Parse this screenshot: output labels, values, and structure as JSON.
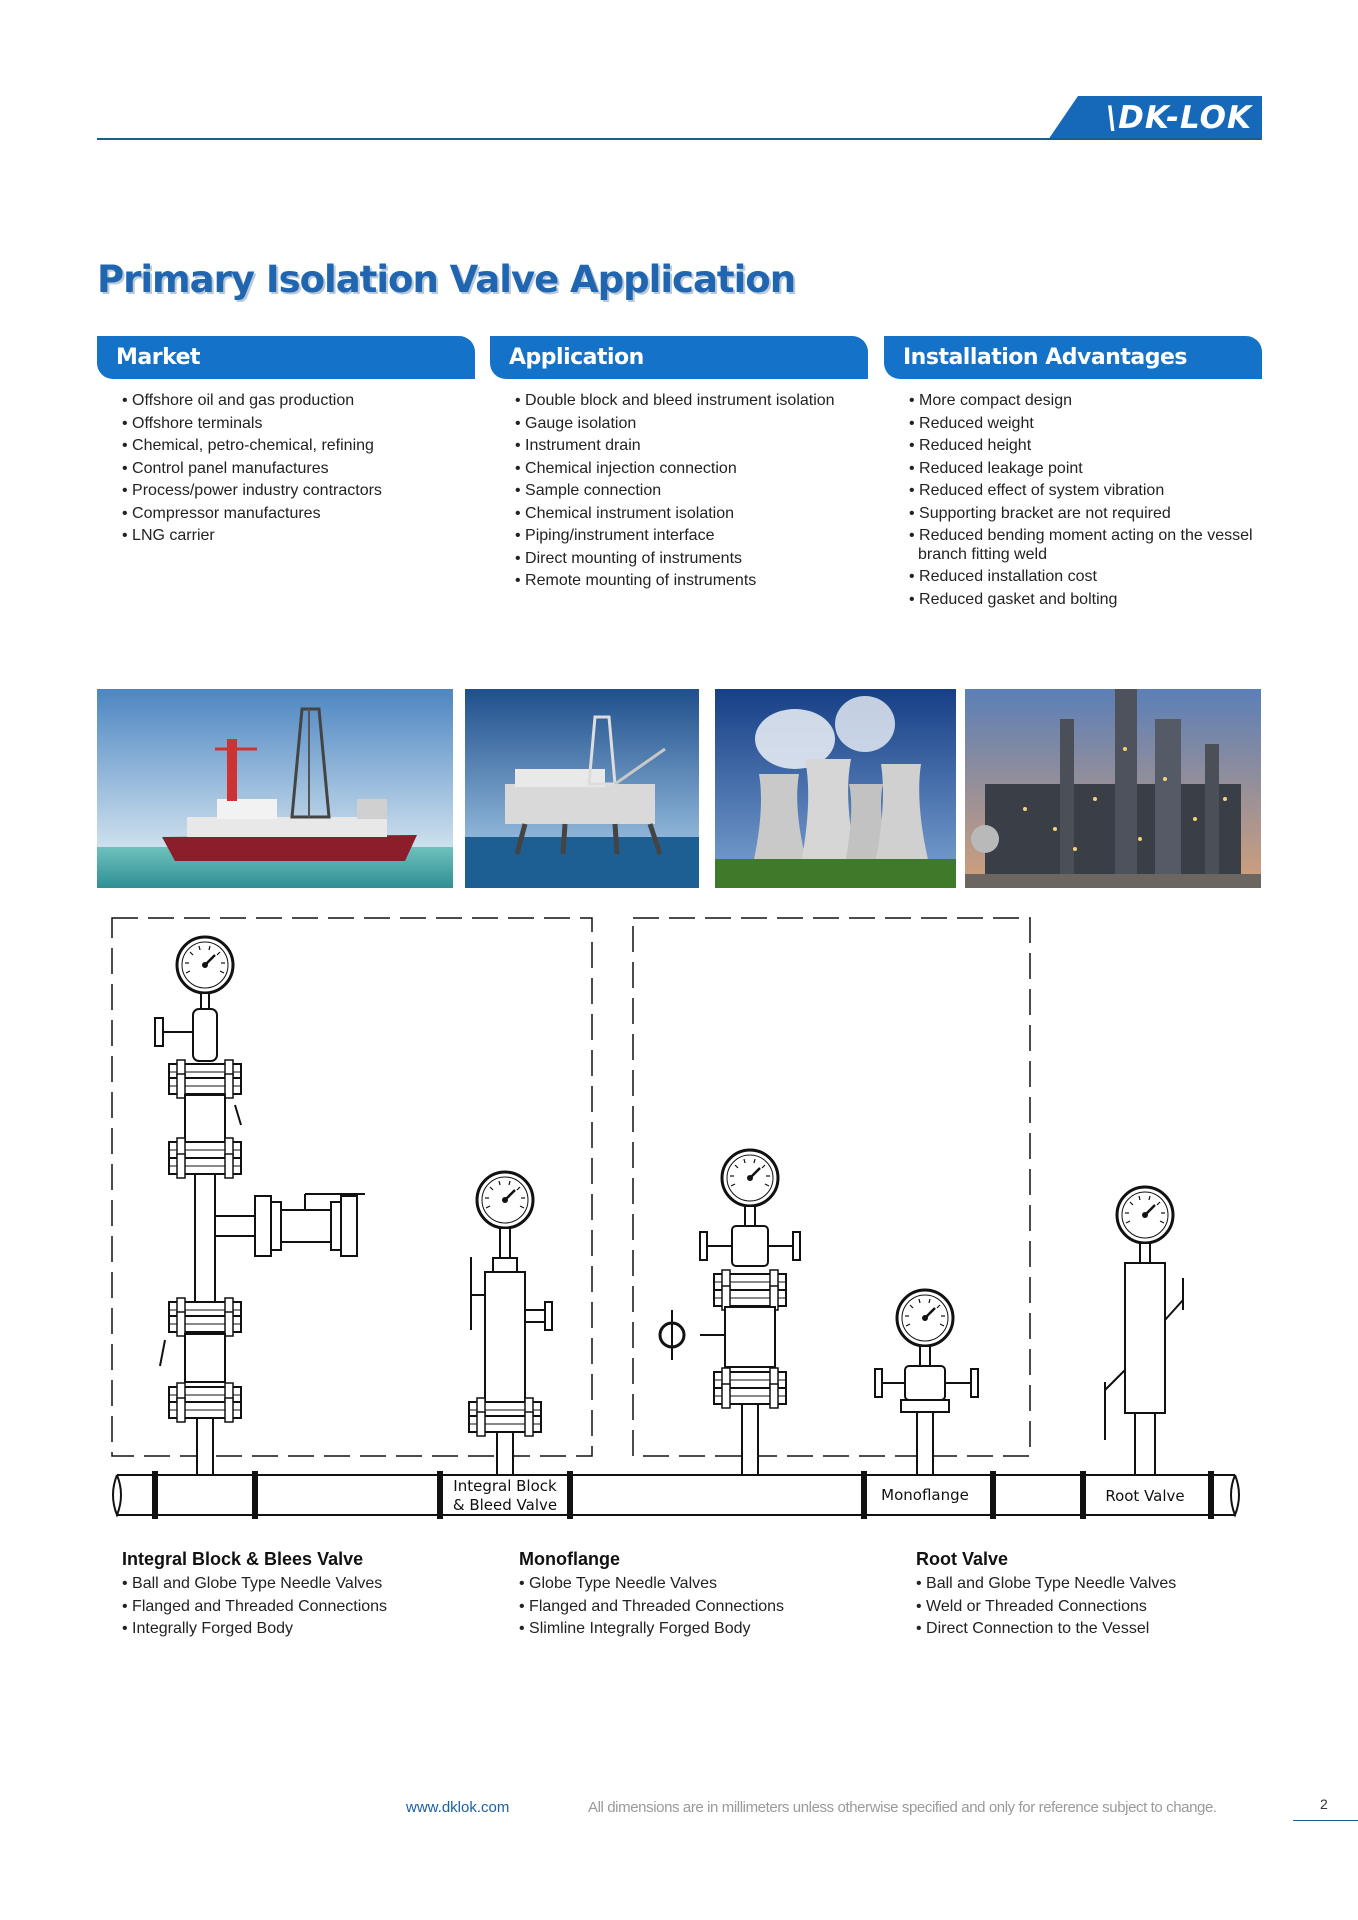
{
  "brand": {
    "logo_text": "\\DK-LOK",
    "color": "#1668b8"
  },
  "title": "Primary Isolation Valve Application",
  "columns": [
    {
      "heading": "Market",
      "items": [
        "Offshore oil and gas production",
        "Offshore terminals",
        "Chemical, petro-chemical, refining",
        "Control panel manufactures",
        "Process/power industry contractors",
        "Compressor manufactures",
        "LNG carrier"
      ]
    },
    {
      "heading": "Application",
      "items": [
        "Double block and bleed instrument isolation",
        "Gauge isolation",
        "Instrument drain",
        "Chemical injection connection",
        "Sample connection",
        "Chemical instrument isolation",
        "Piping/instrument interface",
        "Direct mounting of instruments",
        "Remote mounting of instruments"
      ]
    },
    {
      "heading": "Installation Advantages",
      "items": [
        "More compact design",
        "Reduced weight",
        "Reduced height",
        "Reduced leakage point",
        "Reduced effect of system vibration",
        "Supporting bracket are not required",
        "Reduced bending moment acting on the vessel branch fitting weld",
        "Reduced installation cost",
        "Reduced gasket and bolting"
      ]
    }
  ],
  "photos": [
    {
      "icon": "drillship-photo"
    },
    {
      "icon": "offshore-platform-photo"
    },
    {
      "icon": "cooling-towers-photo"
    },
    {
      "icon": "refinery-photo"
    }
  ],
  "diagram_labels": {
    "integral_line1": "Integral Block",
    "integral_line2": "& Bleed Valve",
    "monoflange": "Monoflange",
    "root": "Root Valve"
  },
  "products": [
    {
      "title": "Integral Block & Blees Valve",
      "items": [
        "Ball and Globe Type Needle Valves",
        "Flanged and Threaded Connections",
        "Integrally Forged Body"
      ]
    },
    {
      "title": "Monoflange",
      "items": [
        "Globe Type Needle Valves",
        "Flanged and Threaded Connections",
        "Slimline Integrally Forged Body"
      ]
    },
    {
      "title": "Root Valve",
      "items": [
        "Ball and Globe Type Needle Valves",
        "Weld or Threaded Connections",
        "Direct Connection to the Vessel"
      ]
    }
  ],
  "footer": {
    "url": "www.dklok.com",
    "note": "All dimensions are in millimeters unless otherwise specified and only for reference subject to change.",
    "page": "2"
  }
}
